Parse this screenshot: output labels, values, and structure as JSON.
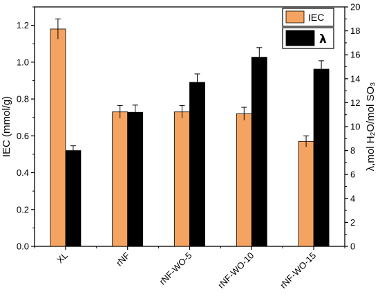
{
  "chart_data": {
    "type": "bar",
    "categories": [
      "XL",
      "rNF",
      "rNF-WO-5",
      "rNF-WO-10",
      "rNF-WO-15"
    ],
    "series": [
      {
        "name": "IEC",
        "axis": "left",
        "color": "#F4A460",
        "values": [
          1.18,
          0.73,
          0.73,
          0.72,
          0.57
        ],
        "errors": [
          0.055,
          0.035,
          0.035,
          0.035,
          0.03
        ]
      },
      {
        "name": "λ",
        "axis": "right",
        "color": "#000000",
        "values": [
          8.0,
          11.2,
          13.7,
          15.8,
          14.8
        ],
        "errors": [
          0.4,
          0.6,
          0.7,
          0.8,
          0.7
        ]
      }
    ],
    "ylabel_left": "IEC (mmol/g)",
    "ylabel_right": "λ,mol H₂O/mol SO₃",
    "ylim_left": [
      0,
      1.3
    ],
    "ylim_right": [
      0,
      20
    ],
    "yticks_left": [
      "0.0",
      "0.2",
      "0.4",
      "0.6",
      "0.8",
      "1.0",
      "1.2"
    ],
    "yticks_right": [
      "0",
      "2",
      "4",
      "6",
      "8",
      "10",
      "12",
      "14",
      "16",
      "18",
      "20"
    ],
    "legend_position": "top-right",
    "grid": false
  }
}
